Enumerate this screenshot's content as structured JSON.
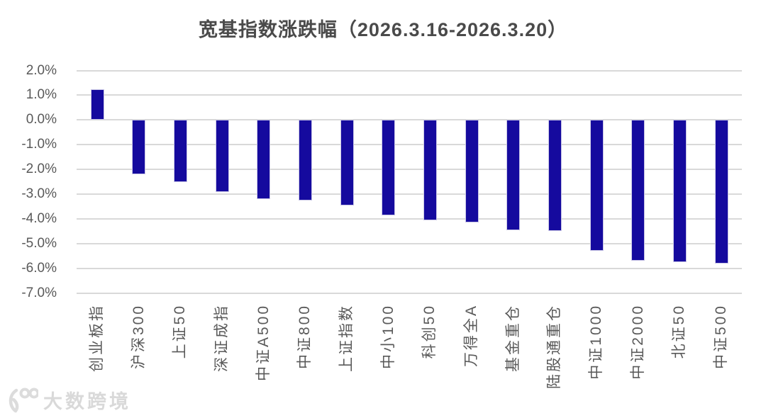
{
  "header": {
    "title": "宽基指数涨跌幅（2026.3.16-2026.3.20）"
  },
  "watermark": {
    "logo": "100",
    "brand_text": "大数跨境"
  },
  "chart_data": {
    "type": "bar",
    "title": "宽基指数涨跌幅（2026.3.16-2026.3.20）",
    "categories": [
      "创业板指",
      "沪深300",
      "上证50",
      "深证成指",
      "中证A500",
      "中证800",
      "上证指数",
      "中小100",
      "科创50",
      "万得全A",
      "基金重仓",
      "陆股通重仓",
      "中证1000",
      "中证2000",
      "北证50",
      "中证500"
    ],
    "values": [
      1.25,
      -2.2,
      -2.5,
      -2.9,
      -3.2,
      -3.25,
      -3.45,
      -3.85,
      -4.05,
      -4.15,
      -4.45,
      -4.5,
      -5.3,
      -5.7,
      -5.75,
      -5.8
    ],
    "xlabel": "",
    "ylabel": "",
    "ylim": [
      -7.0,
      2.0
    ],
    "yticks": [
      2,
      1,
      0,
      -1,
      -2,
      -3,
      -4,
      -5,
      -6,
      -7
    ],
    "ytick_labels": [
      "2.0%",
      "1.0%",
      "0.0%",
      "-1.0%",
      "-2.0%",
      "-3.0%",
      "-4.0%",
      "-5.0%",
      "-6.0%",
      "-7.0%"
    ],
    "grid": true,
    "legend": false,
    "bar_color": "#150a9e",
    "grid_color": "#d9d9d9",
    "axis_text_color": "#595959",
    "title_color": "#4a4a4a"
  }
}
